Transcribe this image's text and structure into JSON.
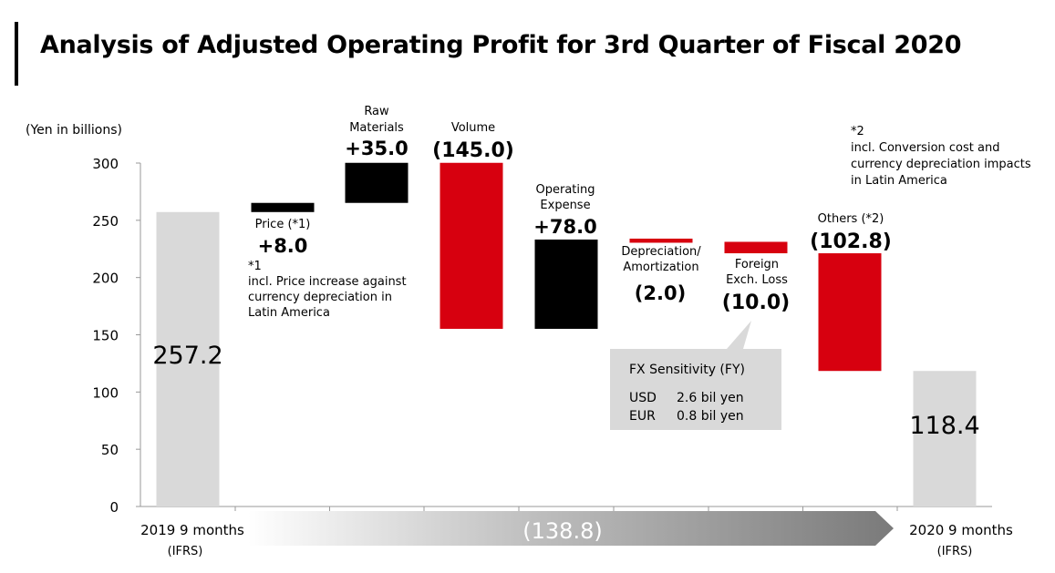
{
  "title": "Analysis of Adjusted Operating Profit for 3rd Quarter of Fiscal 2020",
  "colors": {
    "start_end": "#d9d9d9",
    "positive": "#000000",
    "negative": "#d7000f",
    "callout": "#d9d9d9"
  },
  "chart_data": {
    "type": "bar",
    "subtype": "waterfall",
    "title": "Analysis of Adjusted Operating Profit for 3rd Quarter of Fiscal 2020",
    "unit_label": "(Yen in billions)",
    "ylim": [
      0,
      300
    ],
    "yticks": [
      0,
      50,
      100,
      150,
      200,
      250,
      300
    ],
    "ytick_labels": [
      "0",
      "50",
      "100",
      "150",
      "200",
      "250",
      "300"
    ],
    "grid": false,
    "bars": [
      {
        "label": "2019 9 months",
        "sublabel": "(IFRS)",
        "kind": "total",
        "start": 0,
        "end": 257.2,
        "value_label": "257.2"
      },
      {
        "label": "Price (*1)",
        "kind": "increase",
        "start": 257.2,
        "end": 265.2,
        "value_label": "+8.0",
        "note": [
          "*1",
          "incl. Price increase against",
          "currency depreciation in",
          "Latin America"
        ]
      },
      {
        "label": "Raw Materials",
        "label_lines": [
          "Raw",
          "Materials"
        ],
        "kind": "increase",
        "start": 265.2,
        "end": 300.2,
        "value_label": "+35.0"
      },
      {
        "label": "Volume",
        "kind": "decrease",
        "start": 300.2,
        "end": 155.2,
        "value_label": "(145.0)"
      },
      {
        "label": "Operating Expense",
        "label_lines": [
          "Operating",
          "Expense"
        ],
        "kind": "increase",
        "start": 155.2,
        "end": 233.2,
        "value_label": "+78.0"
      },
      {
        "label": "Depreciation/ Amortization",
        "label_lines": [
          "Depreciation/",
          "Amortization"
        ],
        "kind": "decrease",
        "start": 233.2,
        "end": 231.2,
        "value_label": "(2.0)"
      },
      {
        "label": "Foreign Exch. Loss",
        "label_lines": [
          "Foreign",
          "Exch. Loss"
        ],
        "kind": "decrease",
        "start": 231.2,
        "end": 221.2,
        "value_label": "(10.0)"
      },
      {
        "label": "Others (*2)",
        "kind": "decrease",
        "start": 221.2,
        "end": 118.4,
        "value_label": "(102.8)",
        "note": [
          "*2",
          "incl. Conversion cost and",
          "currency depreciation impacts",
          "in Latin America"
        ]
      },
      {
        "label": "2020 9 months",
        "sublabel": "(IFRS)",
        "kind": "total",
        "start": 0,
        "end": 118.4,
        "value_label": "118.4"
      }
    ],
    "total_change": "(138.8)",
    "callout": {
      "title": "FX Sensitivity (FY)",
      "rows": [
        {
          "currency": "USD",
          "value": "2.6 bil yen"
        },
        {
          "currency": "EUR",
          "value": "0.8 bil yen"
        }
      ]
    }
  }
}
